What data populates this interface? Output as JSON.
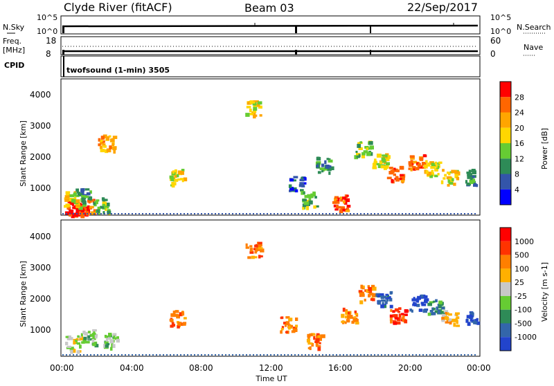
{
  "header": {
    "station": "Clyde River (fitACF)",
    "beam": "Beam 03",
    "date": "22/Sep/2017"
  },
  "top_panels": {
    "nsky_label": "N.Sky",
    "nsky_ticks": [
      "10^5",
      "10^0"
    ],
    "nsky_right_ticks": [
      "10^5",
      "10^0"
    ],
    "nsearch_label": "N.Search",
    "freq_label": "Freq.",
    "freq_unit": "[MHz]",
    "freq_ticks": [
      "18",
      "8"
    ],
    "nave_label": "Nave",
    "nave_ticks": [
      "60",
      "0"
    ],
    "cpid_label": "CPID",
    "cpid_value": "twofsound (1-min) 3505"
  },
  "chart_data": [
    {
      "type": "heatmap",
      "panel": "power",
      "ylabel": "Slant Range [km]",
      "y_ticks": [
        "1000",
        "2000",
        "3000",
        "4000"
      ],
      "ylim": [
        180,
        4500
      ],
      "colorbar_label": "Power [dB]",
      "colorbar_ticks": [
        "4",
        "8",
        "12",
        "16",
        "20",
        "24",
        "28"
      ],
      "colors": [
        "#0000ff",
        "#3355aa",
        "#2e8b57",
        "#66cc33",
        "#ffd700",
        "#ffa500",
        "#ff6600",
        "#ff0000"
      ],
      "patches": [
        {
          "t": 0.6,
          "r": 400,
          "v": 7
        },
        {
          "t": 1.0,
          "r": 350,
          "v": 7
        },
        {
          "t": 1.4,
          "r": 450,
          "v": 6
        },
        {
          "t": 0.5,
          "r": 700,
          "v": 4
        },
        {
          "t": 1.2,
          "r": 800,
          "v": 2
        },
        {
          "t": 2.2,
          "r": 500,
          "v": 3
        },
        {
          "t": 2.5,
          "r": 2500,
          "v": 5
        },
        {
          "t": 6.6,
          "r": 1400,
          "v": 4
        },
        {
          "t": 11.0,
          "r": 3600,
          "v": 4
        },
        {
          "t": 13.5,
          "r": 1200,
          "v": 1
        },
        {
          "t": 14.2,
          "r": 700,
          "v": 3
        },
        {
          "t": 15.0,
          "r": 1800,
          "v": 2
        },
        {
          "t": 16.0,
          "r": 600,
          "v": 6
        },
        {
          "t": 17.3,
          "r": 2300,
          "v": 3
        },
        {
          "t": 18.3,
          "r": 1900,
          "v": 4
        },
        {
          "t": 19.2,
          "r": 1500,
          "v": 6
        },
        {
          "t": 20.4,
          "r": 1900,
          "v": 6
        },
        {
          "t": 21.3,
          "r": 1700,
          "v": 4
        },
        {
          "t": 22.3,
          "r": 1400,
          "v": 4
        },
        {
          "t": 23.7,
          "r": 1400,
          "v": 2
        }
      ]
    },
    {
      "type": "heatmap",
      "panel": "velocity",
      "ylabel": "Slant Range [km]",
      "xlabel": "Time UT",
      "x_ticks": [
        "00:00",
        "04:00",
        "08:00",
        "12:00",
        "16:00",
        "20:00",
        "00:00"
      ],
      "y_ticks": [
        "1000",
        "2000",
        "3000",
        "4000"
      ],
      "ylim": [
        180,
        4500
      ],
      "colorbar_label": "Velocity [m s-1]",
      "colorbar_ticks": [
        "1000",
        "500",
        "100",
        "25",
        "-25",
        "-100",
        "-500",
        "-1000"
      ],
      "colors": [
        "#2244cc",
        "#3366aa",
        "#2e8b57",
        "#66cc33",
        "#c8c8c8",
        "#ffb000",
        "#ff7f00",
        "#ff3300",
        "#ff0000"
      ],
      "patches": [
        {
          "t": 0.6,
          "r": 600,
          "v": 4
        },
        {
          "t": 1.5,
          "r": 800,
          "v": 3
        },
        {
          "t": 2.8,
          "r": 700,
          "v": 3
        },
        {
          "t": 6.6,
          "r": 1400,
          "v": 6
        },
        {
          "t": 11.0,
          "r": 3600,
          "v": 6
        },
        {
          "t": 13.0,
          "r": 1200,
          "v": 6
        },
        {
          "t": 14.5,
          "r": 700,
          "v": 6
        },
        {
          "t": 16.5,
          "r": 1500,
          "v": 6
        },
        {
          "t": 17.5,
          "r": 2200,
          "v": 6
        },
        {
          "t": 18.5,
          "r": 2000,
          "v": 1
        },
        {
          "t": 19.3,
          "r": 1500,
          "v": 7
        },
        {
          "t": 20.5,
          "r": 1900,
          "v": 0
        },
        {
          "t": 21.5,
          "r": 1800,
          "v": 2
        },
        {
          "t": 22.3,
          "r": 1400,
          "v": 5
        },
        {
          "t": 23.7,
          "r": 1400,
          "v": 0
        }
      ]
    }
  ]
}
